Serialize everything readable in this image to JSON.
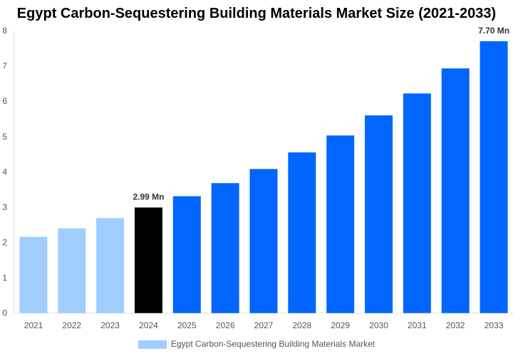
{
  "chart_data": {
    "type": "bar",
    "title": "Egypt Carbon-Sequestering Building Materials Market Size (2021-2033)",
    "categories": [
      "2021",
      "2022",
      "2023",
      "2024",
      "2025",
      "2026",
      "2027",
      "2028",
      "2029",
      "2030",
      "2031",
      "2032",
      "2033"
    ],
    "series": [
      {
        "name": "Egypt Carbon-Sequestering Building Materials Market",
        "values": [
          2.16,
          2.4,
          2.69,
          2.99,
          3.31,
          3.68,
          4.08,
          4.55,
          5.03,
          5.6,
          6.22,
          6.93,
          7.7
        ]
      }
    ],
    "data_labels": {
      "3": "2.99 Mn",
      "12": "7.70 Mn"
    },
    "ylim": [
      0,
      8
    ],
    "yticks": [
      0,
      1,
      2,
      3,
      4,
      5,
      6,
      7,
      8
    ],
    "grid": false,
    "legend": "bottom",
    "colors": {
      "historical": "#a0cfff",
      "base_year": "#000000",
      "forecast": "#0066ff"
    }
  }
}
